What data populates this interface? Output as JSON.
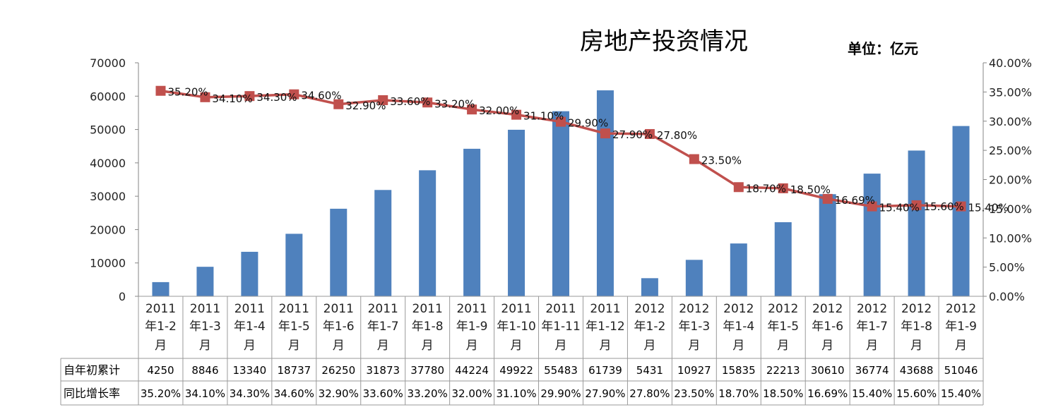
{
  "chart_data": {
    "type": "bar+line",
    "title": "房地产投资情况",
    "unit_label": "单位：亿元",
    "categories": [
      {
        "year": "2011",
        "period": "年1-2",
        "suffix": "月"
      },
      {
        "year": "2011",
        "period": "年1-3",
        "suffix": "月"
      },
      {
        "year": "2011",
        "period": "年1-4",
        "suffix": "月"
      },
      {
        "year": "2011",
        "period": "年1-5",
        "suffix": "月"
      },
      {
        "year": "2011",
        "period": "年1-6",
        "suffix": "月"
      },
      {
        "year": "2011",
        "period": "年1-7",
        "suffix": "月"
      },
      {
        "year": "2011",
        "period": "年1-8",
        "suffix": "月"
      },
      {
        "year": "2011",
        "period": "年1-9",
        "suffix": "月"
      },
      {
        "year": "2011",
        "period": "年1-10",
        "suffix": "月"
      },
      {
        "year": "2011",
        "period": "年1-11",
        "suffix": "月"
      },
      {
        "year": "2011",
        "period": "年1-12",
        "suffix": "月"
      },
      {
        "year": "2012",
        "period": "年1-2",
        "suffix": "月"
      },
      {
        "year": "2012",
        "period": "年1-3",
        "suffix": "月"
      },
      {
        "year": "2012",
        "period": "年1-4",
        "suffix": "月"
      },
      {
        "year": "2012",
        "period": "年1-5",
        "suffix": "月"
      },
      {
        "year": "2012",
        "period": "年1-6",
        "suffix": "月"
      },
      {
        "year": "2012",
        "period": "年1-7",
        "suffix": "月"
      },
      {
        "year": "2012",
        "period": "年1-8",
        "suffix": "月"
      },
      {
        "year": "2012",
        "period": "年1-9",
        "suffix": "月"
      }
    ],
    "series": [
      {
        "name": "自年初累计",
        "kind": "bar",
        "axis": "left",
        "color": "#4F81BD",
        "values": [
          4250,
          8846,
          13340,
          18737,
          26250,
          31873,
          37780,
          44224,
          49922,
          55483,
          61739,
          5431,
          10927,
          15835,
          22213,
          30610,
          36774,
          43688,
          51046
        ],
        "labels": [
          "4250",
          "8846",
          "13340",
          "18737",
          "26250",
          "31873",
          "37780",
          "44224",
          "49922",
          "55483",
          "61739",
          "5431",
          "10927",
          "15835",
          "22213",
          "30610",
          "36774",
          "43688",
          "51046"
        ]
      },
      {
        "name": "同比增长率",
        "kind": "line",
        "axis": "right",
        "color": "#C0504D",
        "values": [
          35.2,
          34.1,
          34.3,
          34.6,
          32.9,
          33.6,
          33.2,
          32.0,
          31.1,
          29.9,
          27.9,
          27.8,
          23.5,
          18.7,
          18.5,
          16.69,
          15.4,
          15.6,
          15.4
        ],
        "labels": [
          "35.20%",
          "34.10%",
          "34.30%",
          "34.60%",
          "32.90%",
          "33.60%",
          "33.20%",
          "32.00%",
          "31.10%",
          "29.90%",
          "27.90%",
          "27.80%",
          "23.50%",
          "18.70%",
          "18.50%",
          "16.69%",
          "15.40%",
          "15.60%",
          "15.40%"
        ]
      }
    ],
    "y_left": {
      "min": 0,
      "max": 70000,
      "ticks": [
        "0",
        "10000",
        "20000",
        "30000",
        "40000",
        "50000",
        "60000",
        "70000"
      ]
    },
    "y_right": {
      "min": 0,
      "max": 40,
      "ticks": [
        "0.00%",
        "5.00%",
        "10.00%",
        "15.00%",
        "20.00%",
        "25.00%",
        "30.00%",
        "35.00%",
        "40.00%"
      ]
    },
    "data_table": true,
    "gridlines": false
  }
}
